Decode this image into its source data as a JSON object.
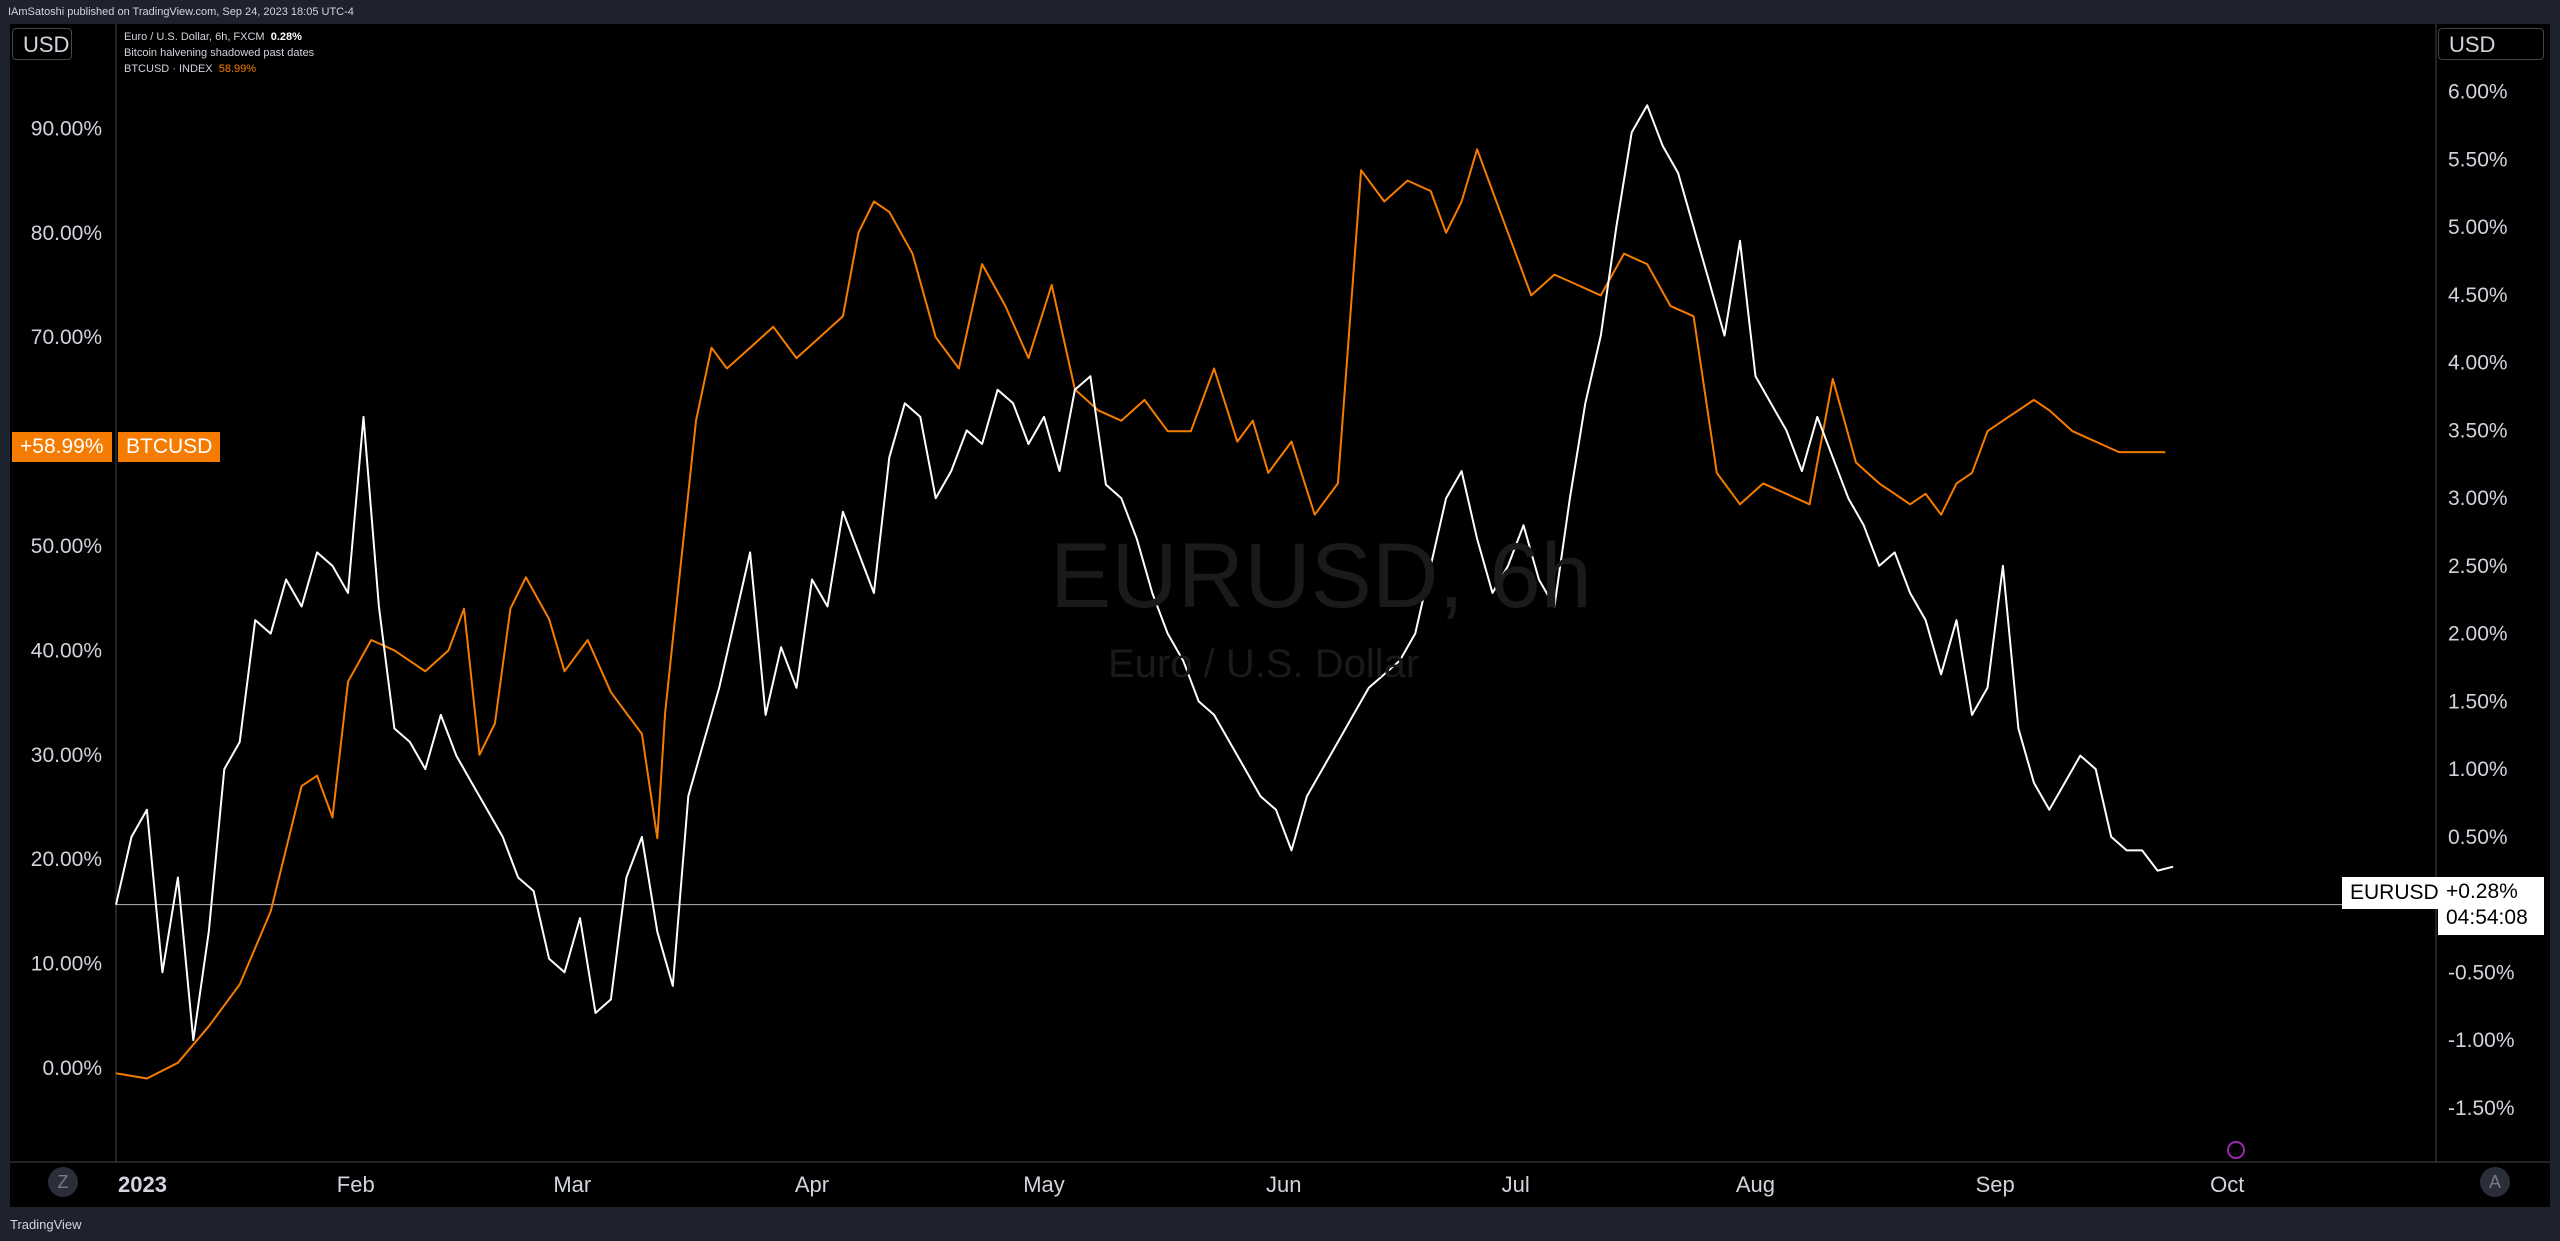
{
  "header": {
    "publisher": "IAmSatoshi published on TradingView.com, Sep 24, 2023 18:05 UTC-4"
  },
  "units": {
    "left": "USD",
    "right": "USD"
  },
  "legend": {
    "main_symbol": "Euro / U.S. Dollar, 6h, FXCM",
    "main_value": "0.28%",
    "indicator": "Bitcoin halvening shadowed past dates",
    "compare_symbol": "BTCUSD · INDEX",
    "compare_value": "58.99%"
  },
  "watermark": {
    "title": "EURUSD, 6h",
    "subtitle": "Euro / U.S. Dollar"
  },
  "labels": {
    "btc_axis_value": "+58.99%",
    "btc_tag": "BTCUSD",
    "eur_tag": "EURUSD",
    "eur_value": "+0.28%",
    "eur_countdown": "04:54:08"
  },
  "footer": {
    "logo": "TradingView",
    "corner_left": "Z",
    "corner_right": "A"
  },
  "colors": {
    "background": "#000000",
    "btc_line": "#f57c00",
    "eur_line": "#ffffff",
    "axis_text": "#d1d4dc"
  },
  "chart_data": {
    "type": "line",
    "x_ticks": [
      "2023",
      "Feb",
      "Mar",
      "Apr",
      "May",
      "Jun",
      "Jul",
      "Aug",
      "Sep",
      "Oct"
    ],
    "x_tick_days": [
      0,
      31,
      59,
      90,
      120,
      151,
      181,
      212,
      243,
      273
    ],
    "x_range_days": [
      0,
      300
    ],
    "left_axis": {
      "ticks": [
        "90.00%",
        "80.00%",
        "70.00%",
        "50.00%",
        "40.00%",
        "30.00%",
        "20.00%",
        "10.00%",
        "0.00%"
      ],
      "tick_values": [
        90,
        80,
        70,
        50,
        40,
        30,
        20,
        10,
        0
      ],
      "range": [
        -9,
        100
      ]
    },
    "right_axis": {
      "ticks": [
        "6.00%",
        "5.50%",
        "5.00%",
        "4.50%",
        "4.00%",
        "3.50%",
        "3.00%",
        "2.50%",
        "2.00%",
        "1.50%",
        "1.00%",
        "0.50%",
        "-0.50%",
        "-1.00%",
        "-1.50%"
      ],
      "tick_values": [
        6,
        5.5,
        5,
        4.5,
        4,
        3.5,
        3,
        2.5,
        2,
        1.5,
        1,
        0.5,
        -0.5,
        -1,
        -1.5
      ],
      "range": [
        -1.9,
        6.5
      ],
      "zero_line": 0
    },
    "series": [
      {
        "name": "BTCUSD",
        "axis": "left",
        "x": [
          0,
          4,
          8,
          12,
          16,
          20,
          24,
          26,
          28,
          30,
          33,
          36,
          40,
          43,
          45,
          47,
          49,
          51,
          53,
          56,
          58,
          61,
          64,
          66,
          68,
          70,
          71,
          73,
          75,
          77,
          79,
          82,
          85,
          88,
          91,
          94,
          96,
          98,
          100,
          103,
          106,
          109,
          112,
          115,
          118,
          121,
          124,
          127,
          130,
          133,
          136,
          139,
          142,
          145,
          147,
          149,
          152,
          155,
          158,
          161,
          164,
          167,
          170,
          172,
          174,
          176,
          178,
          180,
          183,
          186,
          189,
          192,
          195,
          198,
          201,
          204,
          207,
          210,
          213,
          216,
          219,
          222,
          225,
          228,
          230,
          232,
          234,
          236,
          238,
          240,
          242,
          244,
          246,
          248,
          250,
          253,
          256,
          259,
          262,
          265
        ],
        "values": [
          -0.5,
          -1.0,
          0.5,
          4.0,
          8.0,
          15.0,
          27.0,
          28.0,
          24.0,
          37.0,
          41.0,
          40.0,
          38.0,
          40.0,
          44.0,
          30.0,
          33.0,
          44.0,
          47.0,
          43.0,
          38.0,
          41.0,
          36.0,
          34.0,
          32.0,
          22.0,
          34.0,
          48.0,
          62.0,
          69.0,
          67.0,
          69.0,
          71.0,
          68.0,
          70.0,
          72.0,
          80.0,
          83.0,
          82.0,
          78.0,
          70.0,
          67.0,
          77.0,
          73.0,
          68.0,
          75.0,
          65.0,
          63.0,
          62.0,
          64.0,
          61.0,
          61.0,
          67.0,
          60.0,
          62.0,
          57.0,
          60.0,
          53.0,
          56.0,
          86.0,
          83.0,
          85.0,
          84.0,
          80.0,
          83.0,
          88.0,
          84.0,
          80.0,
          74.0,
          76.0,
          75.0,
          74.0,
          78.0,
          77.0,
          73.0,
          72.0,
          57.0,
          54.0,
          56.0,
          55.0,
          54.0,
          66.0,
          58.0,
          56.0,
          55.0,
          54.0,
          55.0,
          53.0,
          56.0,
          57.0,
          61.0,
          62.0,
          63.0,
          64.0,
          63.0,
          61.0,
          60.0,
          59.0,
          59.0,
          58.99
        ]
      },
      {
        "name": "EURUSD",
        "axis": "right",
        "x": [
          0,
          2,
          4,
          6,
          8,
          10,
          12,
          14,
          16,
          18,
          20,
          22,
          24,
          26,
          28,
          30,
          32,
          34,
          36,
          38,
          40,
          42,
          44,
          46,
          48,
          50,
          52,
          54,
          56,
          58,
          60,
          62,
          64,
          66,
          68,
          70,
          72,
          74,
          76,
          78,
          80,
          82,
          84,
          86,
          88,
          90,
          92,
          94,
          96,
          98,
          100,
          102,
          104,
          106,
          108,
          110,
          112,
          114,
          116,
          118,
          120,
          122,
          124,
          126,
          128,
          130,
          132,
          134,
          136,
          138,
          140,
          142,
          144,
          146,
          148,
          150,
          152,
          154,
          156,
          158,
          160,
          162,
          164,
          166,
          168,
          170,
          172,
          174,
          176,
          178,
          180,
          182,
          184,
          186,
          188,
          190,
          192,
          194,
          196,
          198,
          200,
          202,
          204,
          206,
          208,
          210,
          212,
          214,
          216,
          218,
          220,
          222,
          224,
          226,
          228,
          230,
          232,
          234,
          236,
          238,
          240,
          242,
          244,
          246,
          248,
          250,
          252,
          254,
          256,
          258,
          260,
          262,
          264,
          266
        ],
        "values": [
          0.0,
          0.5,
          0.7,
          -0.5,
          0.2,
          -1.0,
          -0.2,
          1.0,
          1.2,
          2.1,
          2.0,
          2.4,
          2.2,
          2.6,
          2.5,
          2.3,
          3.6,
          2.2,
          1.3,
          1.2,
          1.0,
          1.4,
          1.1,
          0.9,
          0.7,
          0.5,
          0.2,
          0.1,
          -0.4,
          -0.5,
          -0.1,
          -0.8,
          -0.7,
          0.2,
          0.5,
          -0.2,
          -0.6,
          0.8,
          1.2,
          1.6,
          2.1,
          2.6,
          1.4,
          1.9,
          1.6,
          2.4,
          2.2,
          2.9,
          2.6,
          2.3,
          3.3,
          3.7,
          3.6,
          3.0,
          3.2,
          3.5,
          3.4,
          3.8,
          3.7,
          3.4,
          3.6,
          3.2,
          3.8,
          3.9,
          3.1,
          3.0,
          2.7,
          2.3,
          2.0,
          1.8,
          1.5,
          1.4,
          1.2,
          1.0,
          0.8,
          0.7,
          0.4,
          0.8,
          1.0,
          1.2,
          1.4,
          1.6,
          1.7,
          1.8,
          2.0,
          2.5,
          3.0,
          3.2,
          2.7,
          2.3,
          2.5,
          2.8,
          2.4,
          2.2,
          3.0,
          3.7,
          4.2,
          5.0,
          5.7,
          5.9,
          5.6,
          5.4,
          5.0,
          4.6,
          4.2,
          4.9,
          3.9,
          3.7,
          3.5,
          3.2,
          3.6,
          3.3,
          3.0,
          2.8,
          2.5,
          2.6,
          2.3,
          2.1,
          1.7,
          2.1,
          1.4,
          1.6,
          2.5,
          1.3,
          0.9,
          0.7,
          0.9,
          1.1,
          1.0,
          0.5,
          0.4,
          0.4,
          0.25,
          0.28
        ]
      }
    ],
    "current": {
      "BTCUSD": 58.99,
      "EURUSD": 0.28
    }
  }
}
